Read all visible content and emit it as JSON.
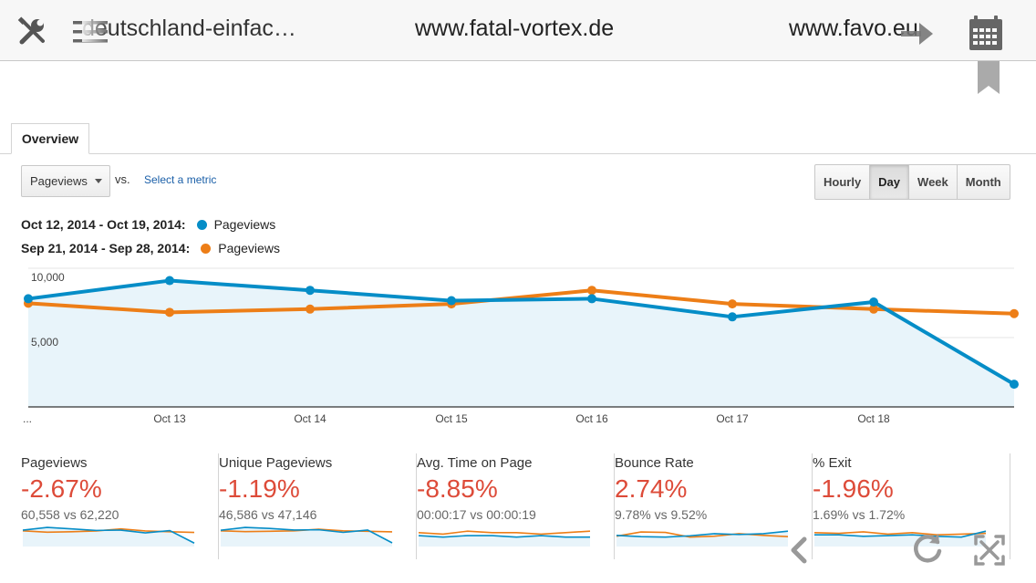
{
  "topbar": {
    "tools_icon": "wrench-screwdriver-icon",
    "menu_icon": "hamburger-menu-icon",
    "tabs": [
      {
        "label": "deutschland-einfac…"
      },
      {
        "label": "www.fatal-vortex.de"
      },
      {
        "label": "www.favo.eu"
      }
    ],
    "next_icon": "arrow-right-icon",
    "calendar_icon": "calendar-icon",
    "bookmark_icon": "bookmark-icon"
  },
  "tab": {
    "label": "Overview"
  },
  "metric": {
    "selected": "Pageviews",
    "vs_label": "vs.",
    "select_link": "Select a metric"
  },
  "granularity": {
    "options": [
      "Hourly",
      "Day",
      "Week",
      "Month"
    ],
    "active": "Day"
  },
  "legend": [
    {
      "range": "Oct 12, 2014 - Oct 19, 2014:",
      "label": "Pageviews",
      "color": "#058dc7"
    },
    {
      "range": "Sep 21, 2014 - Sep 28, 2014:",
      "label": "Pageviews",
      "color": "#ed7e17"
    }
  ],
  "chart_data": {
    "type": "line",
    "x": [
      "...",
      "Oct 13",
      "Oct 14",
      "Oct 15",
      "Oct 16",
      "Oct 17",
      "Oct 18",
      ""
    ],
    "yticks": [
      "10,000",
      "5,000"
    ],
    "ylim": [
      0,
      10000
    ],
    "series": [
      {
        "values": [
          8350,
          9750,
          9000,
          8200,
          8350,
          6950,
          8100,
          1750
        ]
      },
      {
        "values": [
          8000,
          7300,
          7550,
          7950,
          9000,
          7950,
          7550,
          7200
        ]
      }
    ],
    "fill_color": "#e8f4fa",
    "grid": true
  },
  "stats": [
    {
      "name": "Pageviews",
      "change": "-2.67%",
      "compare": "60,558 vs 62,220",
      "spark_a": [
        8350,
        9750,
        9000,
        8200,
        8350,
        6950,
        8100,
        1750
      ],
      "spark_b": [
        8000,
        7300,
        7550,
        7950,
        9000,
        7950,
        7550,
        7200
      ]
    },
    {
      "name": "Unique Pageviews",
      "change": "-1.19%",
      "compare": "46,586 vs 47,146",
      "spark_a": [
        6200,
        7300,
        6900,
        6300,
        6400,
        5400,
        6300,
        1400
      ],
      "spark_b": [
        6000,
        5700,
        5800,
        6000,
        6600,
        6000,
        5800,
        5600
      ]
    },
    {
      "name": "Avg. Time on Page",
      "change": "-8.85%",
      "compare": "00:00:17 vs 00:00:19",
      "spark_a": [
        17,
        16,
        17,
        17,
        16,
        17,
        16,
        16
      ],
      "spark_b": [
        19,
        18,
        20,
        19,
        19,
        18,
        19,
        20
      ]
    },
    {
      "name": "Bounce Rate",
      "change": "2.74%",
      "compare": "9.78% vs 9.52%",
      "spark_a": [
        9.6,
        9.3,
        9.2,
        9.5,
        10.0,
        9.8,
        10.0,
        10.6
      ],
      "spark_b": [
        9.4,
        10.4,
        10.3,
        9.2,
        9.4,
        10.0,
        9.6,
        9.3
      ]
    },
    {
      "name": "% Exit",
      "change": "-1.96%",
      "compare": "1.69% vs 1.72%",
      "spark_a": [
        1.7,
        1.7,
        1.68,
        1.69,
        1.7,
        1.68,
        1.67,
        1.75
      ],
      "spark_b": [
        1.73,
        1.72,
        1.74,
        1.71,
        1.73,
        1.7,
        1.71,
        1.72
      ]
    }
  ],
  "overlay": {
    "prev_icon": "chevron-left-icon",
    "refresh_icon": "refresh-icon",
    "close_icon": "fullscreen-exit-icon"
  }
}
